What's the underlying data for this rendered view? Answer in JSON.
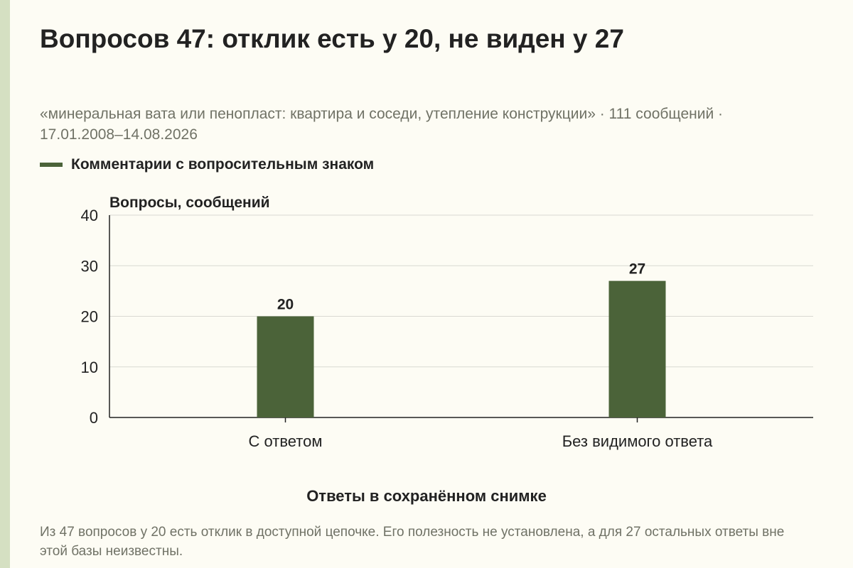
{
  "header": {
    "title": "Вопросов 47: отклик есть у 20, не виден у 27",
    "subtitle": "«минеральная вата или пенопласт: квартира и соседи, утепление конструкции» · 111 сообщений · 17.01.2008–14.08.2026"
  },
  "chart_data": {
    "type": "bar",
    "categories": [
      "С ответом",
      "Без видимого ответа"
    ],
    "series": [
      {
        "name": "Комментарии с вопросительным знаком",
        "values": [
          20,
          27
        ],
        "color": "#4b6339"
      }
    ],
    "data_labels": [
      "20",
      "27"
    ],
    "ylabel": "Вопросы, сообщений",
    "xlabel": "Ответы в сохранённом снимке",
    "ylim": [
      0,
      40
    ],
    "yticks": [
      0,
      10,
      20,
      30,
      40
    ],
    "grid": true,
    "legend_position": "top-left"
  },
  "footnote": "Из 47 вопросов у 20 есть отклик в доступной цепочке. Его полезность не установлена, а для 27 остальных ответы вне этой базы неизвестны.",
  "colors": {
    "accent": "#4b6339",
    "background": "#fdfcf4",
    "left_bar": "#d5e0c2"
  }
}
